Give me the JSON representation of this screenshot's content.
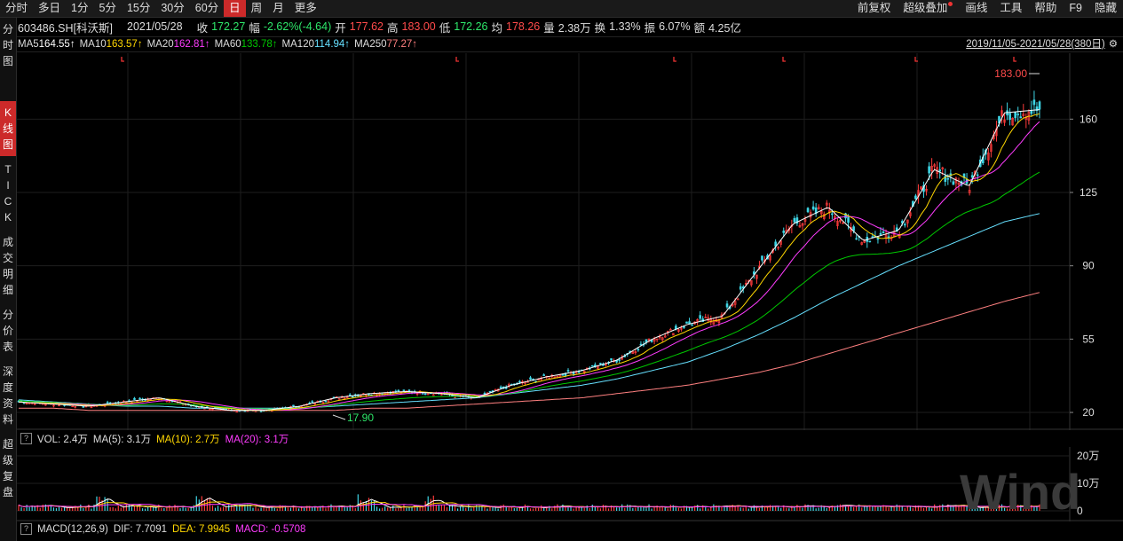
{
  "toolbar": {
    "tabs": [
      "分时",
      "多日",
      "1分",
      "5分",
      "15分",
      "30分",
      "60分",
      "日",
      "周",
      "月",
      "更多"
    ],
    "active": "日",
    "right": [
      "前复权",
      "超级叠加",
      "画线",
      "工具",
      "帮助",
      "F9",
      "隐藏"
    ]
  },
  "quote": {
    "code": "603486.SH[科沃斯]",
    "date": "2021/05/28",
    "close_label": "收",
    "close": "172.27",
    "change_label": "幅",
    "change": "-2.62%(-4.64)",
    "open_label": "开",
    "open": "177.62",
    "high_label": "高",
    "high": "183.00",
    "low_label": "低",
    "low": "172.26",
    "avg_label": "均",
    "avg": "178.26",
    "vol_label": "量",
    "vol": "2.38万",
    "turnover_label": "换",
    "turnover": "1.33%",
    "amp_label": "振",
    "amp": "6.07%",
    "amount_label": "额",
    "amount": "4.25亿"
  },
  "ma": [
    {
      "label": "MA5",
      "value": "164.55↑",
      "color": "#ffffff"
    },
    {
      "label": "MA10",
      "value": "163.57↑",
      "color": "#ffd700"
    },
    {
      "label": "MA20",
      "value": "162.81↑",
      "color": "#ff3cff"
    },
    {
      "label": "MA60",
      "value": "133.78↑",
      "color": "#00c800"
    },
    {
      "label": "MA120",
      "value": "114.94↑",
      "color": "#66e0ff"
    },
    {
      "label": "MA250",
      "value": "77.27↑",
      "color": "#ff8080"
    }
  ],
  "range": "2019/11/05-2021/05/28(380日)",
  "sidetabs": [
    {
      "label": "分时图",
      "active": false
    },
    {
      "label": "K线图",
      "active": true
    },
    {
      "label": "TICK",
      "active": false
    },
    {
      "label": "成交明细",
      "active": false
    },
    {
      "label": "分价表",
      "active": false
    },
    {
      "label": "深度资料",
      "active": false
    },
    {
      "label": "超级复盘",
      "active": false
    }
  ],
  "vol": {
    "q": "?",
    "vol": "VOL: 2.4万",
    "ma5": "MA(5): 3.1万",
    "ma10": "MA(10): 2.7万",
    "ma20": "MA(20): 3.1万",
    "axis": [
      "20万",
      "10万",
      "0"
    ]
  },
  "macd": {
    "q": "?",
    "name": "MACD(12,26,9)",
    "dif": "DIF: 7.7091",
    "dea": "DEA: 7.9945",
    "macd": "MACD: -0.5708"
  },
  "watermark": "Wind",
  "chart_data": {
    "type": "candlestick",
    "yticks": [
      20,
      55,
      90,
      125,
      160
    ],
    "ylim": [
      17.9,
      183.0
    ],
    "max_label": "183.00",
    "min_label": "17.90",
    "series": [
      {
        "name": "MA5",
        "values": [
          25,
          24,
          23,
          25,
          27,
          23,
          21,
          21,
          23,
          27,
          29,
          30,
          29,
          27,
          33,
          37,
          40,
          45,
          55,
          62,
          66,
          88,
          110,
          118,
          102,
          107,
          136,
          128,
          163,
          164.55
        ]
      },
      {
        "name": "MA120",
        "values": [
          26,
          25,
          24,
          23,
          23,
          22,
          22,
          22,
          22,
          23,
          24,
          25,
          26,
          27,
          29,
          31,
          33,
          36,
          40,
          44,
          50,
          57,
          65,
          74,
          82,
          90,
          97,
          104,
          111,
          114.94
        ]
      },
      {
        "name": "MA250",
        "values": [
          22,
          22,
          21,
          21,
          21,
          21,
          21,
          21,
          21,
          21,
          22,
          22,
          23,
          24,
          25,
          26,
          27,
          29,
          31,
          33,
          36,
          39,
          43,
          48,
          53,
          58,
          63,
          68,
          73,
          77.27
        ]
      }
    ]
  }
}
